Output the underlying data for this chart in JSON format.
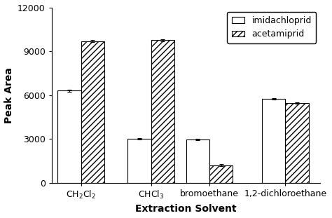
{
  "imidachloprid_values": [
    6300,
    3000,
    2950,
    5750
  ],
  "acetamiprid_values": [
    9700,
    9750,
    1200,
    5450
  ],
  "imidachloprid_errors": [
    60,
    50,
    55,
    60
  ],
  "acetamiprid_errors": [
    70,
    80,
    60,
    60
  ],
  "ylabel": "Peak Area",
  "xlabel": "Extraction Solvent",
  "ylim": [
    0,
    12000
  ],
  "yticks": [
    0,
    3000,
    6000,
    9000,
    12000
  ],
  "bar_width": 0.4,
  "x_positions": [
    0.5,
    1.7,
    2.7,
    4.0
  ],
  "x_tick_positions": [
    0.5,
    1.7,
    2.7,
    4.0
  ],
  "x_tick_labels": [
    "CH$_2$Cl$_2$",
    "CHCl$_3$",
    "bromoethane",
    "1,2-dichloroethane"
  ],
  "background_color": "#ffffff",
  "imidachloprid_color": "#ffffff",
  "edge_color": "#000000",
  "hatch": "////",
  "fontsize_axis_label": 10,
  "fontsize_tick": 9,
  "fontsize_legend": 9
}
